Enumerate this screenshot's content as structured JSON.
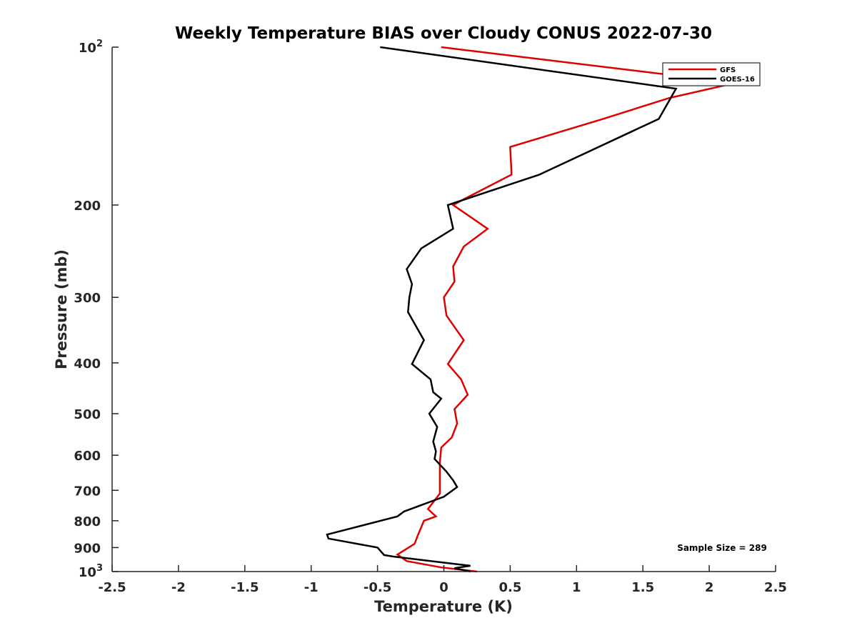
{
  "chart_data": {
    "type": "line",
    "title": "Weekly Temperature BIAS over Cloudy CONUS 2022-07-30",
    "xlabel": "Temperature (K)",
    "ylabel": "Pressure (mb)",
    "xlim": [
      -2.5,
      2.5
    ],
    "ylim": [
      1000,
      100
    ],
    "y_scale": "log",
    "y_reversed": true,
    "grid": false,
    "legend_position": "top-right",
    "x_ticks": [
      {
        "value": -2.5,
        "label": "-2.5"
      },
      {
        "value": -2,
        "label": "-2"
      },
      {
        "value": -1.5,
        "label": "-1.5"
      },
      {
        "value": -1,
        "label": "-1"
      },
      {
        "value": -0.5,
        "label": "-0.5"
      },
      {
        "value": 0,
        "label": "0"
      },
      {
        "value": 0.5,
        "label": "0.5"
      },
      {
        "value": 1,
        "label": "1"
      },
      {
        "value": 1.5,
        "label": "1.5"
      },
      {
        "value": 2,
        "label": "2"
      },
      {
        "value": 2.5,
        "label": "2.5"
      }
    ],
    "y_ticks": [
      {
        "value": 100,
        "label": "10",
        "sup": "2"
      },
      {
        "value": 200,
        "label": "200",
        "sup": ""
      },
      {
        "value": 300,
        "label": "300",
        "sup": ""
      },
      {
        "value": 400,
        "label": "400",
        "sup": ""
      },
      {
        "value": 500,
        "label": "500",
        "sup": ""
      },
      {
        "value": 600,
        "label": "600",
        "sup": ""
      },
      {
        "value": 700,
        "label": "700",
        "sup": ""
      },
      {
        "value": 800,
        "label": "800",
        "sup": ""
      },
      {
        "value": 900,
        "label": "900",
        "sup": ""
      },
      {
        "value": 1000,
        "label": "10",
        "sup": "3"
      }
    ],
    "series": [
      {
        "name": "GFS",
        "color": "#e00000",
        "points": [
          {
            "x": -0.02,
            "y": 100
          },
          {
            "x": 2.2,
            "y": 117
          },
          {
            "x": 1.7,
            "y": 125
          },
          {
            "x": 1.2,
            "y": 137
          },
          {
            "x": 0.5,
            "y": 155
          },
          {
            "x": 0.51,
            "y": 175
          },
          {
            "x": 0.15,
            "y": 195
          },
          {
            "x": 0.07,
            "y": 200
          },
          {
            "x": 0.33,
            "y": 222
          },
          {
            "x": 0.15,
            "y": 240
          },
          {
            "x": 0.07,
            "y": 262
          },
          {
            "x": 0.08,
            "y": 280
          },
          {
            "x": 0.0,
            "y": 300
          },
          {
            "x": 0.02,
            "y": 325
          },
          {
            "x": 0.15,
            "y": 362
          },
          {
            "x": 0.03,
            "y": 402
          },
          {
            "x": 0.13,
            "y": 430
          },
          {
            "x": 0.18,
            "y": 460
          },
          {
            "x": 0.08,
            "y": 490
          },
          {
            "x": 0.1,
            "y": 522
          },
          {
            "x": 0.06,
            "y": 555
          },
          {
            "x": -0.02,
            "y": 580
          },
          {
            "x": -0.03,
            "y": 620
          },
          {
            "x": -0.03,
            "y": 665
          },
          {
            "x": -0.03,
            "y": 710
          },
          {
            "x": -0.12,
            "y": 760
          },
          {
            "x": -0.06,
            "y": 785
          },
          {
            "x": -0.15,
            "y": 800
          },
          {
            "x": -0.2,
            "y": 858
          },
          {
            "x": -0.22,
            "y": 885
          },
          {
            "x": -0.35,
            "y": 928
          },
          {
            "x": -0.28,
            "y": 955
          },
          {
            "x": -0.02,
            "y": 982
          },
          {
            "x": 0.25,
            "y": 1000
          }
        ]
      },
      {
        "name": "GOES-16",
        "color": "#000000",
        "points": [
          {
            "x": -0.48,
            "y": 100
          },
          {
            "x": 1.75,
            "y": 120
          },
          {
            "x": 1.62,
            "y": 137
          },
          {
            "x": 0.72,
            "y": 175
          },
          {
            "x": 0.03,
            "y": 200
          },
          {
            "x": 0.07,
            "y": 222
          },
          {
            "x": -0.17,
            "y": 242
          },
          {
            "x": -0.28,
            "y": 265
          },
          {
            "x": -0.24,
            "y": 283
          },
          {
            "x": -0.26,
            "y": 300
          },
          {
            "x": -0.27,
            "y": 320
          },
          {
            "x": -0.15,
            "y": 362
          },
          {
            "x": -0.24,
            "y": 402
          },
          {
            "x": -0.1,
            "y": 430
          },
          {
            "x": -0.08,
            "y": 455
          },
          {
            "x": -0.02,
            "y": 468
          },
          {
            "x": -0.11,
            "y": 500
          },
          {
            "x": -0.05,
            "y": 530
          },
          {
            "x": -0.08,
            "y": 565
          },
          {
            "x": -0.06,
            "y": 590
          },
          {
            "x": -0.07,
            "y": 610
          },
          {
            "x": 0.02,
            "y": 645
          },
          {
            "x": 0.07,
            "y": 670
          },
          {
            "x": 0.1,
            "y": 690
          },
          {
            "x": 0.0,
            "y": 720
          },
          {
            "x": -0.3,
            "y": 768
          },
          {
            "x": -0.35,
            "y": 785
          },
          {
            "x": -0.88,
            "y": 850
          },
          {
            "x": -0.87,
            "y": 865
          },
          {
            "x": -0.5,
            "y": 900
          },
          {
            "x": -0.45,
            "y": 930
          },
          {
            "x": -0.37,
            "y": 937
          },
          {
            "x": 0.05,
            "y": 965
          },
          {
            "x": 0.2,
            "y": 975
          },
          {
            "x": 0.08,
            "y": 985
          },
          {
            "x": 0.2,
            "y": 1000
          }
        ]
      }
    ],
    "annotations": [
      {
        "text": "Sample Size = 289",
        "position": "bottom-right"
      }
    ]
  }
}
